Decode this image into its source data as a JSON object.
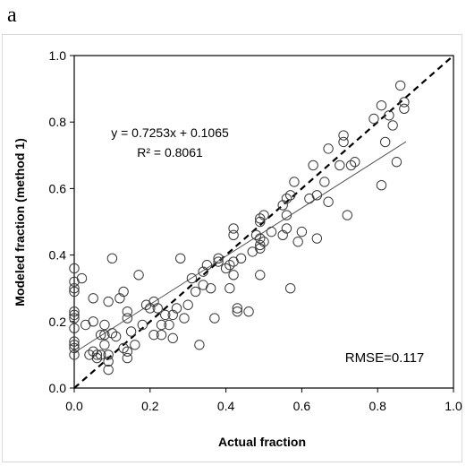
{
  "panel_label": "a",
  "chart_data": {
    "type": "scatter",
    "xlabel": "Actual fraction",
    "ylabel": "Modeled fraction (method 1)",
    "xlim": [
      0,
      1
    ],
    "ylim": [
      0,
      1
    ],
    "x_ticks": [
      "0.0",
      "0.2",
      "0.4",
      "0.6",
      "0.8",
      "1.0"
    ],
    "y_ticks": [
      "0.0",
      "0.2",
      "0.4",
      "0.6",
      "0.8",
      "1.0"
    ],
    "grid": false,
    "equation_line1": "y = 0.7253x + 0.1065",
    "equation_line2": "R² = 0.8061",
    "rmse_label": "RMSE=0.117",
    "regression": {
      "slope": 0.7253,
      "intercept": 0.1065,
      "x_range": [
        0,
        0.875
      ]
    },
    "one_to_one_line": true,
    "marker": "open-circle",
    "points": [
      [
        0.0,
        0.36
      ],
      [
        0.0,
        0.32
      ],
      [
        0.0,
        0.3
      ],
      [
        0.0,
        0.29
      ],
      [
        0.0,
        0.23
      ],
      [
        0.0,
        0.22
      ],
      [
        0.0,
        0.21
      ],
      [
        0.0,
        0.18
      ],
      [
        0.0,
        0.14
      ],
      [
        0.0,
        0.13
      ],
      [
        0.0,
        0.12
      ],
      [
        0.0,
        0.1
      ],
      [
        0.02,
        0.33
      ],
      [
        0.03,
        0.19
      ],
      [
        0.04,
        0.1
      ],
      [
        0.05,
        0.27
      ],
      [
        0.05,
        0.2
      ],
      [
        0.05,
        0.11
      ],
      [
        0.06,
        0.1
      ],
      [
        0.06,
        0.09
      ],
      [
        0.07,
        0.16
      ],
      [
        0.07,
        0.1
      ],
      [
        0.08,
        0.19
      ],
      [
        0.08,
        0.16
      ],
      [
        0.08,
        0.13
      ],
      [
        0.09,
        0.26
      ],
      [
        0.09,
        0.1
      ],
      [
        0.09,
        0.08
      ],
      [
        0.09,
        0.055
      ],
      [
        0.1,
        0.39
      ],
      [
        0.1,
        0.165
      ],
      [
        0.11,
        0.155
      ],
      [
        0.12,
        0.27
      ],
      [
        0.13,
        0.29
      ],
      [
        0.13,
        0.12
      ],
      [
        0.14,
        0.23
      ],
      [
        0.14,
        0.21
      ],
      [
        0.14,
        0.11
      ],
      [
        0.14,
        0.09
      ],
      [
        0.15,
        0.17
      ],
      [
        0.16,
        0.13
      ],
      [
        0.17,
        0.34
      ],
      [
        0.18,
        0.19
      ],
      [
        0.19,
        0.25
      ],
      [
        0.2,
        0.24
      ],
      [
        0.21,
        0.26
      ],
      [
        0.21,
        0.16
      ],
      [
        0.22,
        0.24
      ],
      [
        0.23,
        0.16
      ],
      [
        0.23,
        0.19
      ],
      [
        0.24,
        0.22
      ],
      [
        0.25,
        0.19
      ],
      [
        0.26,
        0.22
      ],
      [
        0.26,
        0.15
      ],
      [
        0.27,
        0.24
      ],
      [
        0.28,
        0.39
      ],
      [
        0.29,
        0.21
      ],
      [
        0.3,
        0.25
      ],
      [
        0.31,
        0.33
      ],
      [
        0.32,
        0.29
      ],
      [
        0.33,
        0.13
      ],
      [
        0.34,
        0.35
      ],
      [
        0.34,
        0.31
      ],
      [
        0.35,
        0.37
      ],
      [
        0.36,
        0.3
      ],
      [
        0.37,
        0.21
      ],
      [
        0.38,
        0.39
      ],
      [
        0.38,
        0.38
      ],
      [
        0.4,
        0.36
      ],
      [
        0.41,
        0.3
      ],
      [
        0.41,
        0.37
      ],
      [
        0.42,
        0.48
      ],
      [
        0.42,
        0.46
      ],
      [
        0.42,
        0.34
      ],
      [
        0.42,
        0.38
      ],
      [
        0.43,
        0.24
      ],
      [
        0.43,
        0.23
      ],
      [
        0.44,
        0.39
      ],
      [
        0.46,
        0.23
      ],
      [
        0.47,
        0.41
      ],
      [
        0.48,
        0.46
      ],
      [
        0.49,
        0.51
      ],
      [
        0.49,
        0.5
      ],
      [
        0.49,
        0.45
      ],
      [
        0.49,
        0.43
      ],
      [
        0.49,
        0.42
      ],
      [
        0.49,
        0.34
      ],
      [
        0.5,
        0.52
      ],
      [
        0.5,
        0.44
      ],
      [
        0.52,
        0.47
      ],
      [
        0.55,
        0.46
      ],
      [
        0.55,
        0.55
      ],
      [
        0.56,
        0.57
      ],
      [
        0.56,
        0.52
      ],
      [
        0.56,
        0.48
      ],
      [
        0.57,
        0.58
      ],
      [
        0.57,
        0.3
      ],
      [
        0.58,
        0.62
      ],
      [
        0.59,
        0.44
      ],
      [
        0.6,
        0.47
      ],
      [
        0.62,
        0.57
      ],
      [
        0.63,
        0.67
      ],
      [
        0.64,
        0.58
      ],
      [
        0.64,
        0.45
      ],
      [
        0.66,
        0.62
      ],
      [
        0.67,
        0.72
      ],
      [
        0.67,
        0.56
      ],
      [
        0.7,
        0.67
      ],
      [
        0.71,
        0.76
      ],
      [
        0.71,
        0.74
      ],
      [
        0.72,
        0.52
      ],
      [
        0.73,
        0.67
      ],
      [
        0.74,
        0.68
      ],
      [
        0.79,
        0.81
      ],
      [
        0.81,
        0.85
      ],
      [
        0.81,
        0.61
      ],
      [
        0.82,
        0.74
      ],
      [
        0.83,
        0.82
      ],
      [
        0.84,
        0.79
      ],
      [
        0.85,
        0.68
      ],
      [
        0.86,
        0.91
      ],
      [
        0.87,
        0.86
      ],
      [
        0.87,
        0.84
      ]
    ]
  }
}
